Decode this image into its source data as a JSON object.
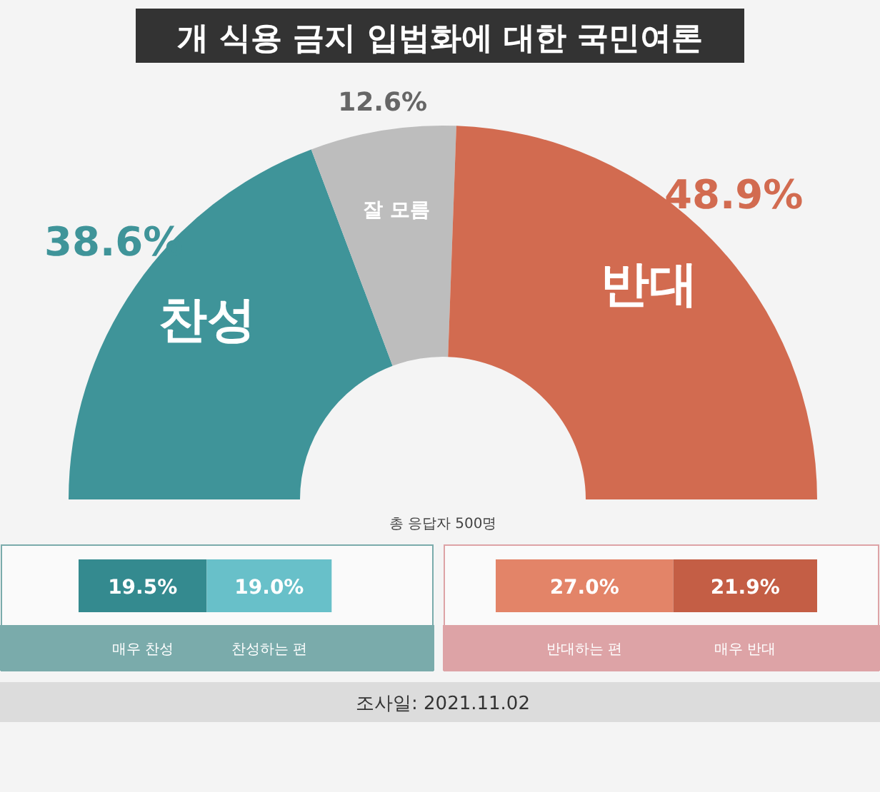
{
  "chart_data": [
    {
      "type": "donut",
      "title": "개 식용 금지 입법화에 대한 국민여론",
      "categories": [
        "찬성",
        "잘 모름",
        "반대"
      ],
      "values": [
        38.6,
        12.6,
        48.9
      ],
      "value_labels": [
        "38.6%",
        "12.6%",
        "48.9%"
      ],
      "colors": [
        "#3f9499",
        "#bdbdbd",
        "#d26b50"
      ],
      "annotations": [
        "총 응답자 500명",
        "조사일: 2021.11.02"
      ]
    },
    {
      "type": "bar",
      "orientation": "horizontal",
      "stacked": true,
      "categories": [
        null
      ],
      "series": [
        {
          "name": "매우 찬성",
          "color": "#348a8f",
          "values": [
            19.5
          ],
          "value_labels": [
            "19.5%"
          ]
        },
        {
          "name": "찬성하는 편",
          "color": "#68c0c9",
          "values": [
            19.0
          ],
          "value_labels": [
            "19.0%"
          ]
        }
      ]
    },
    {
      "type": "bar",
      "orientation": "horizontal",
      "stacked": true,
      "categories": [
        null
      ],
      "series": [
        {
          "name": "반대하는 편",
          "color": "#e38468",
          "values": [
            27.0
          ],
          "value_labels": [
            "27.0%"
          ]
        },
        {
          "name": "매우 반대",
          "color": "#c45e45",
          "values": [
            21.9
          ],
          "value_labels": [
            "21.9%"
          ]
        }
      ]
    }
  ]
}
